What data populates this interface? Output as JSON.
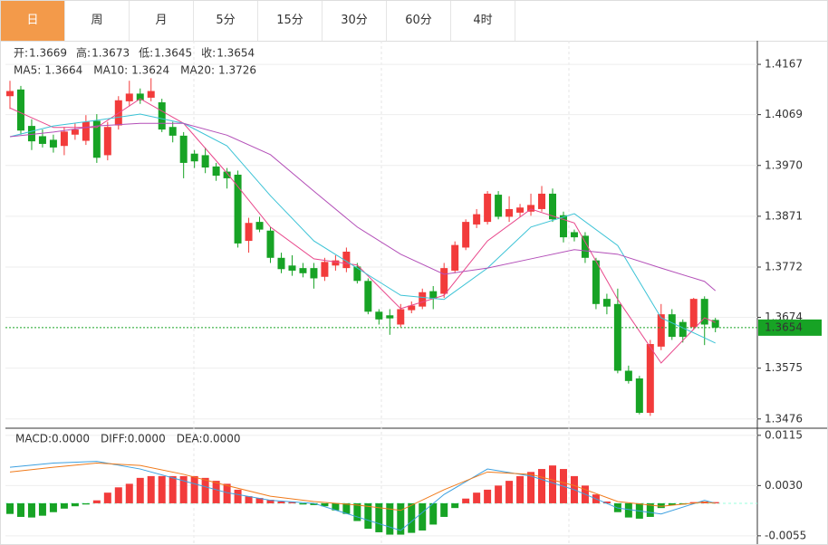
{
  "tabs": [
    "日",
    "周",
    "月",
    "5分",
    "15分",
    "30分",
    "60分",
    "4时"
  ],
  "active_tab": 0,
  "chart_data": [
    {
      "type": "candlestick",
      "up_color": "#f23b3b",
      "down_color": "#17a325",
      "info_labels": [
        "开:",
        "高:",
        "低:",
        "收:"
      ],
      "ylim": [
        1.3458,
        1.4213
      ],
      "yticks": [
        1.4167,
        1.4069,
        {
          "value": 1.397,
          "label": "1.3970"
        },
        1.3871,
        1.3772,
        1.3674,
        1.3575,
        1.3476
      ],
      "grid": true,
      "open": [
        1.4105,
        1.4118,
        1.4047,
        1.4027,
        1.402,
        1.4008,
        1.403,
        1.4018,
        1.4057,
        1.399,
        1.4048,
        1.4095,
        1.411,
        1.4102,
        1.4093,
        1.4045,
        1.4028,
        1.3993,
        1.399,
        1.3968,
        1.3958,
        1.3952,
        1.3823,
        1.386,
        1.3843,
        1.379,
        1.3775,
        1.377,
        1.377,
        1.3753,
        1.3775,
        1.377,
        1.3773,
        1.3745,
        1.3685,
        1.3678,
        1.366,
        1.3688,
        1.3695,
        1.3725,
        1.372,
        1.3765,
        1.381,
        1.3855,
        1.386,
        1.3913,
        1.387,
        1.3878,
        1.388,
        1.3885,
        1.3915,
        1.3873,
        1.384,
        1.3833,
        1.3785,
        1.371,
        1.37,
        1.357,
        1.3555,
        1.3488,
        1.3617,
        1.368,
        1.3665,
        1.3655,
        1.371,
        1.3669
      ],
      "high": [
        1.4135,
        1.4125,
        1.406,
        1.404,
        1.403,
        1.4045,
        1.4052,
        1.4068,
        1.407,
        1.4055,
        1.4105,
        1.4135,
        1.412,
        1.414,
        1.41,
        1.4055,
        1.4035,
        1.4,
        1.4005,
        1.3975,
        1.3965,
        1.396,
        1.3868,
        1.387,
        1.385,
        1.38,
        1.3795,
        1.378,
        1.378,
        1.379,
        1.3795,
        1.381,
        1.378,
        1.375,
        1.369,
        1.369,
        1.37,
        1.3705,
        1.373,
        1.3735,
        1.378,
        1.3822,
        1.3865,
        1.3885,
        1.392,
        1.392,
        1.391,
        1.3895,
        1.3915,
        1.393,
        1.3925,
        1.388,
        1.3845,
        1.384,
        1.379,
        1.372,
        1.373,
        1.358,
        1.356,
        1.363,
        1.37,
        1.369,
        1.367,
        1.3712,
        1.3715,
        1.3673
      ],
      "low": [
        1.408,
        1.403,
        1.4,
        1.4005,
        1.3995,
        1.399,
        1.402,
        1.401,
        1.3975,
        1.398,
        1.404,
        1.4085,
        1.409,
        1.4095,
        1.4035,
        1.4015,
        1.3945,
        1.3965,
        1.3955,
        1.394,
        1.3925,
        1.381,
        1.38,
        1.384,
        1.378,
        1.376,
        1.3755,
        1.3752,
        1.373,
        1.3745,
        1.3765,
        1.3762,
        1.374,
        1.368,
        1.366,
        1.364,
        1.3655,
        1.3682,
        1.369,
        1.369,
        1.3712,
        1.376,
        1.3805,
        1.3848,
        1.3855,
        1.3865,
        1.386,
        1.387,
        1.3872,
        1.388,
        1.386,
        1.382,
        1.3822,
        1.378,
        1.369,
        1.368,
        1.3565,
        1.3545,
        1.3485,
        1.3482,
        1.361,
        1.363,
        1.3625,
        1.365,
        1.362,
        1.3645
      ],
      "close": [
        1.4115,
        1.4038,
        1.4017,
        1.4012,
        1.4005,
        1.4036,
        1.404,
        1.4055,
        1.3985,
        1.4045,
        1.4097,
        1.411,
        1.4097,
        1.4115,
        1.404,
        1.4028,
        1.3975,
        1.3978,
        1.3966,
        1.395,
        1.3945,
        1.3818,
        1.3858,
        1.3845,
        1.379,
        1.3768,
        1.3765,
        1.376,
        1.375,
        1.3782,
        1.3785,
        1.3802,
        1.3745,
        1.3685,
        1.367,
        1.3672,
        1.369,
        1.3697,
        1.3723,
        1.371,
        1.377,
        1.3815,
        1.386,
        1.3875,
        1.3915,
        1.387,
        1.3885,
        1.3888,
        1.3893,
        1.3915,
        1.3865,
        1.383,
        1.383,
        1.379,
        1.37,
        1.3695,
        1.357,
        1.355,
        1.3488,
        1.3622,
        1.368,
        1.3636,
        1.3636,
        1.371,
        1.366,
        1.3654
      ],
      "ma": [
        {
          "name": "MA5:",
          "color": "#e8478b",
          "x": [
            0,
            4,
            8,
            12,
            16,
            20,
            24,
            28,
            32,
            36,
            40,
            44,
            48,
            52,
            56,
            60,
            64,
            65
          ],
          "values": [
            1.4082,
            1.4044,
            1.4044,
            1.41,
            1.4052,
            1.3955,
            1.385,
            1.3788,
            1.3776,
            1.3691,
            1.3717,
            1.3823,
            1.3885,
            1.3858,
            1.3709,
            1.3585,
            1.3673,
            1.3664
          ]
        },
        {
          "name": "MA10:",
          "color": "#3cc3d6",
          "x": [
            0,
            4,
            8,
            12,
            16,
            20,
            24,
            28,
            32,
            36,
            40,
            44,
            48,
            52,
            56,
            60,
            64,
            65
          ],
          "values": [
            1.4026,
            1.4047,
            1.4058,
            1.407,
            1.4052,
            1.4008,
            1.3911,
            1.3823,
            1.377,
            1.3717,
            1.3709,
            1.377,
            1.385,
            1.3876,
            1.3814,
            1.3673,
            1.3634,
            1.3624
          ]
        },
        {
          "name": "MA20:",
          "color": "#b34fb8",
          "x": [
            0,
            4,
            8,
            12,
            16,
            20,
            24,
            28,
            32,
            36,
            40,
            44,
            48,
            52,
            56,
            60,
            64,
            65
          ],
          "values": [
            1.4026,
            1.4035,
            1.4047,
            1.4052,
            1.4052,
            1.4029,
            1.3991,
            1.392,
            1.385,
            1.3797,
            1.3758,
            1.377,
            1.3788,
            1.3806,
            1.3797,
            1.377,
            1.3744,
            1.3726
          ]
        }
      ]
    },
    {
      "type": "macd",
      "up_color": "#f23b3b",
      "down_color": "#17a325",
      "legend": [
        {
          "text": "MACD:0.0000",
          "color": "#e8332c"
        },
        {
          "text": "DIFF:0.0000",
          "color": "#3ca0e0"
        },
        {
          "text": "DEA:0.0000",
          "color": "#f07a1a"
        }
      ],
      "ylim": [
        -0.0069,
        0.0127
      ],
      "yticks": [
        0.0115,
        {
          "value": 0.003,
          "label": "0.0030"
        },
        -0.0055
      ],
      "values": [
        -0.0018,
        -0.0023,
        -0.0024,
        -0.0021,
        -0.0015,
        -0.0009,
        -0.0005,
        -0.0002,
        0.0005,
        0.0018,
        0.0027,
        0.0033,
        0.0043,
        0.0046,
        0.0046,
        0.0046,
        0.0046,
        0.0046,
        0.0043,
        0.0038,
        0.0033,
        0.0023,
        0.0012,
        0.0009,
        0.0006,
        0.0003,
        0.0002,
        -0.0002,
        -0.0003,
        -0.0005,
        -0.0012,
        -0.0018,
        -0.003,
        -0.0043,
        -0.0049,
        -0.0053,
        -0.0053,
        -0.005,
        -0.0046,
        -0.0036,
        -0.0023,
        -0.0008,
        0.0008,
        0.0018,
        0.0023,
        0.003,
        0.0038,
        0.0046,
        0.0053,
        0.0058,
        0.0064,
        0.0058,
        0.0046,
        0.003,
        0.0015,
        0.0003,
        -0.0015,
        -0.0024,
        -0.0026,
        -0.0023,
        -0.0008,
        -0.0003,
        -0.0002,
        0.0002,
        0.0003,
        0.0002
      ],
      "series": [
        {
          "name": "DIFF",
          "color": "#3ca0e0",
          "x": [
            0,
            4,
            8,
            12,
            16,
            20,
            24,
            28,
            32,
            36,
            40,
            44,
            48,
            52,
            56,
            60,
            64,
            65
          ],
          "values": [
            0.0061,
            0.0068,
            0.0071,
            0.0058,
            0.0038,
            0.0018,
            0.0005,
            0.0,
            -0.0023,
            -0.0046,
            0.0015,
            0.0058,
            0.0046,
            0.0023,
            -0.0008,
            -0.0018,
            0.0005,
            0.0
          ]
        },
        {
          "name": "DEA",
          "color": "#f07a1a",
          "x": [
            0,
            4,
            8,
            12,
            16,
            20,
            24,
            28,
            32,
            36,
            40,
            44,
            48,
            52,
            56,
            60,
            64,
            65
          ],
          "values": [
            0.0053,
            0.0061,
            0.0068,
            0.0064,
            0.0049,
            0.003,
            0.0012,
            0.0003,
            -0.0003,
            -0.0012,
            0.0023,
            0.0053,
            0.0049,
            0.003,
            0.0003,
            -0.0005,
            0.0002,
            0.0
          ]
        }
      ]
    }
  ]
}
